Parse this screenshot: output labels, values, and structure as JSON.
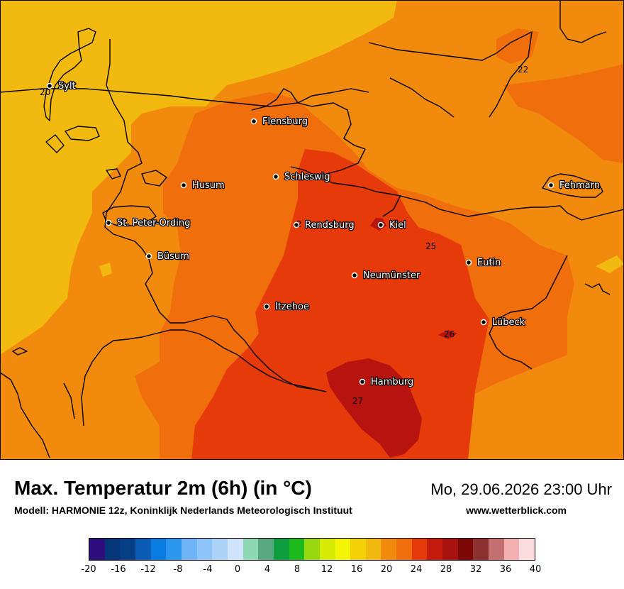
{
  "header": {
    "title": "Max. Temperatur 2m (6h) (in °C)",
    "subtitle": "Modell: HARMONIE 12z, Koninklijk Nederlands Meteorologisch Instituut",
    "datetime": "Mo, 29.06.2026 23:00 Uhr",
    "website": "www.wetterblick.com"
  },
  "map": {
    "cities": [
      {
        "name": "Sylt"
      },
      {
        "name": "Flensburg"
      },
      {
        "name": "Schleswig"
      },
      {
        "name": "Husum"
      },
      {
        "name": "St. Peter-Ording"
      },
      {
        "name": "Rendsburg"
      },
      {
        "name": "Kiel"
      },
      {
        "name": "Büsum"
      },
      {
        "name": "Neumünster"
      },
      {
        "name": "Eutin"
      },
      {
        "name": "Fehmarn"
      },
      {
        "name": "Itzehoe"
      },
      {
        "name": "Lübeck"
      },
      {
        "name": "Hamburg"
      }
    ],
    "contour_labels": [
      "20",
      "22",
      "2",
      "25",
      "26",
      "27"
    ],
    "fill_colors": {
      "t18": "#f2b90f",
      "t20": "#f28a0d",
      "t22": "#f06e0c",
      "t24": "#e63a0a",
      "t26": "#b7130f"
    }
  },
  "legend": {
    "tick_labels": [
      "-20",
      "-16",
      "-12",
      "-8",
      "-4",
      "0",
      "4",
      "8",
      "12",
      "16",
      "20",
      "24",
      "28",
      "32",
      "36",
      "40"
    ],
    "colors": [
      "#2e0e7a",
      "#06357a",
      "#073f86",
      "#0a5cb4",
      "#0a7be0",
      "#2a96ee",
      "#6cb4f6",
      "#8ec5f8",
      "#aed3f9",
      "#cfe3fb",
      "#8ed8b4",
      "#5aa882",
      "#0e9e3e",
      "#1cba1c",
      "#98d80e",
      "#d6ea06",
      "#f4f406",
      "#f2d207",
      "#f2b90f",
      "#f28a0d",
      "#f06e0c",
      "#e63a0a",
      "#c41b0e",
      "#a8120f",
      "#7c0808",
      "#8c3030",
      "#c47070",
      "#f4b0b0",
      "#fcdcdc"
    ]
  }
}
